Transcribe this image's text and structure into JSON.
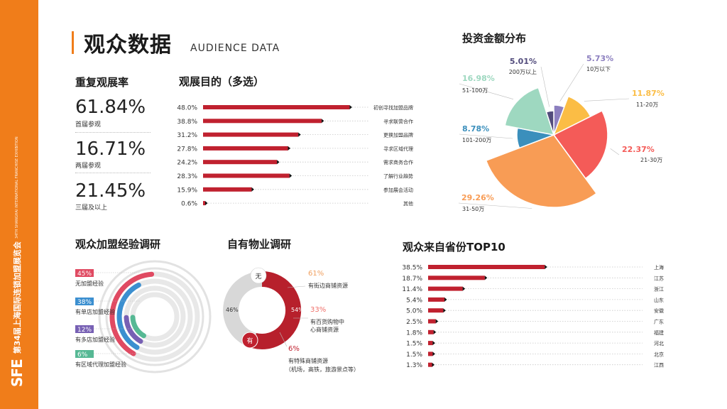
{
  "sidebar": {
    "logo": "SFE",
    "org_cn": "第34届上海国际连锁加盟展览会",
    "org_en": "34TH SHANGHAI INTERNATIONAL FRANCHISE EXHIBITION"
  },
  "header": {
    "title": "观众数据",
    "subtitle": "AUDIENCE DATA"
  },
  "repeat": {
    "title": "重复观展率",
    "items": [
      {
        "value": "61.84%",
        "label": "首届参观"
      },
      {
        "value": "16.71%",
        "label": "两届参观"
      },
      {
        "value": "21.45%",
        "label": "三届及以上"
      }
    ]
  },
  "colors": {
    "accent": "#f07d1a",
    "bar": "#c0212f"
  },
  "chart_data": [
    {
      "type": "bar",
      "orientation": "horizontal",
      "title": "观展目的（多选）",
      "categories": [
        "初创寻找加盟品牌",
        "寻求联营合作",
        "更换加盟品牌",
        "寻求区域代理",
        "需求商务合作",
        "了解行业趋势",
        "参加展会活动",
        "其他"
      ],
      "value_labels": [
        "48.0%",
        "38.8%",
        "31.2%",
        "27.8%",
        "24.2%",
        "28.3%",
        "15.9%",
        "0.6%"
      ],
      "values": [
        48.0,
        38.8,
        31.2,
        27.8,
        24.2,
        28.3,
        15.9,
        0.6
      ],
      "xlim": [
        0,
        60
      ]
    },
    {
      "type": "pie",
      "title": "投资金额分布",
      "slices": [
        {
          "label": "10万以下",
          "value": 5.73,
          "value_label": "5.73%",
          "color": "#8c7fbf"
        },
        {
          "label": "11-20万",
          "value": 11.87,
          "value_label": "11.87%",
          "color": "#fbbd45"
        },
        {
          "label": "21-30万",
          "value": 22.37,
          "value_label": "22.37%",
          "color": "#f45b58"
        },
        {
          "label": "31-50万",
          "value": 29.26,
          "value_label": "29.26%",
          "color": "#f89c55"
        },
        {
          "label": "101-200万",
          "value": 8.78,
          "value_label": "8.78%",
          "color": "#3b8fbc"
        },
        {
          "label": "51-100万",
          "value": 16.98,
          "value_label": "16.98%",
          "color": "#9ed8c0"
        },
        {
          "label": "200万以上",
          "value": 5.01,
          "value_label": "5.01%",
          "color": "#524c7c"
        }
      ]
    },
    {
      "type": "radial_bar",
      "title": "观众加盟经验调研",
      "items": [
        {
          "label": "无加盟经验",
          "value": 45,
          "value_label": "45%",
          "color": "#e04a62"
        },
        {
          "label": "有单店加盟经验",
          "value": 38,
          "value_label": "38%",
          "color": "#3b8fd0"
        },
        {
          "label": "有多店加盟经验",
          "value": 12,
          "value_label": "12%",
          "color": "#7760b4"
        },
        {
          "label": "有区域代理加盟经验",
          "value": 6,
          "value_label": "6%",
          "color": "#56b894"
        }
      ]
    },
    {
      "type": "donut",
      "title": "自有物业调研",
      "slices": [
        {
          "label": "有",
          "value": 54,
          "value_label": "54%",
          "color": "#b7202c"
        },
        {
          "label": "无",
          "value": 46,
          "value_label": "46%",
          "color": "#d8d8d8"
        }
      ],
      "breakdown": [
        {
          "value_label": "61%",
          "label": "有街边商铺资源"
        },
        {
          "value_label": "33%",
          "label": "有百货购物中心商铺资源"
        },
        {
          "value_label": "6%",
          "label": "有特殊商铺资源（机场，高铁，旅游景点等）"
        }
      ]
    },
    {
      "type": "bar",
      "orientation": "horizontal",
      "title": "观众来自省份TOP10",
      "categories": [
        "上海",
        "江苏",
        "浙江",
        "山东",
        "安徽",
        "广东",
        "福建",
        "河北",
        "北京",
        "江西"
      ],
      "value_labels": [
        "38.5%",
        "18.7%",
        "11.4%",
        "5.4%",
        "5.0%",
        "2.5%",
        "1.8%",
        "1.5%",
        "1.5%",
        "1.3%"
      ],
      "values": [
        38.5,
        18.7,
        11.4,
        5.4,
        5.0,
        2.5,
        1.8,
        1.5,
        1.5,
        1.3
      ],
      "xlim": [
        0,
        60
      ]
    }
  ]
}
